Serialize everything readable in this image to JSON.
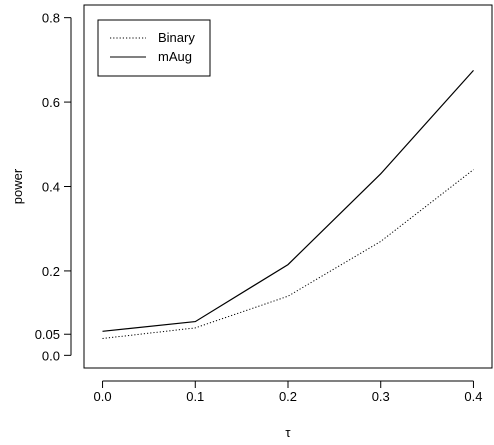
{
  "chart_data": {
    "type": "line",
    "title": "",
    "xlabel": "τ",
    "ylabel": "power",
    "x": [
      0.0,
      0.1,
      0.2,
      0.3,
      0.4
    ],
    "x_ticks": [
      "0.0",
      "0.1",
      "0.2",
      "0.3",
      "0.4"
    ],
    "y_ticks": [
      {
        "value": 0.0,
        "label": "0.0"
      },
      {
        "value": 0.05,
        "label": "0.05"
      },
      {
        "value": 0.2,
        "label": "0.2"
      },
      {
        "value": 0.4,
        "label": "0.4"
      },
      {
        "value": 0.6,
        "label": "0.6"
      },
      {
        "value": 0.8,
        "label": "0.8"
      }
    ],
    "xlim": [
      -0.02,
      0.42
    ],
    "ylim": [
      -0.03,
      0.83
    ],
    "grid": false,
    "legend_position": "top-left",
    "series": [
      {
        "name": "Binary",
        "style": "dotted",
        "color": "#000000",
        "values": [
          0.04,
          0.065,
          0.14,
          0.27,
          0.44
        ]
      },
      {
        "name": "mAug",
        "style": "solid",
        "color": "#000000",
        "values": [
          0.057,
          0.08,
          0.215,
          0.43,
          0.675
        ]
      }
    ]
  }
}
